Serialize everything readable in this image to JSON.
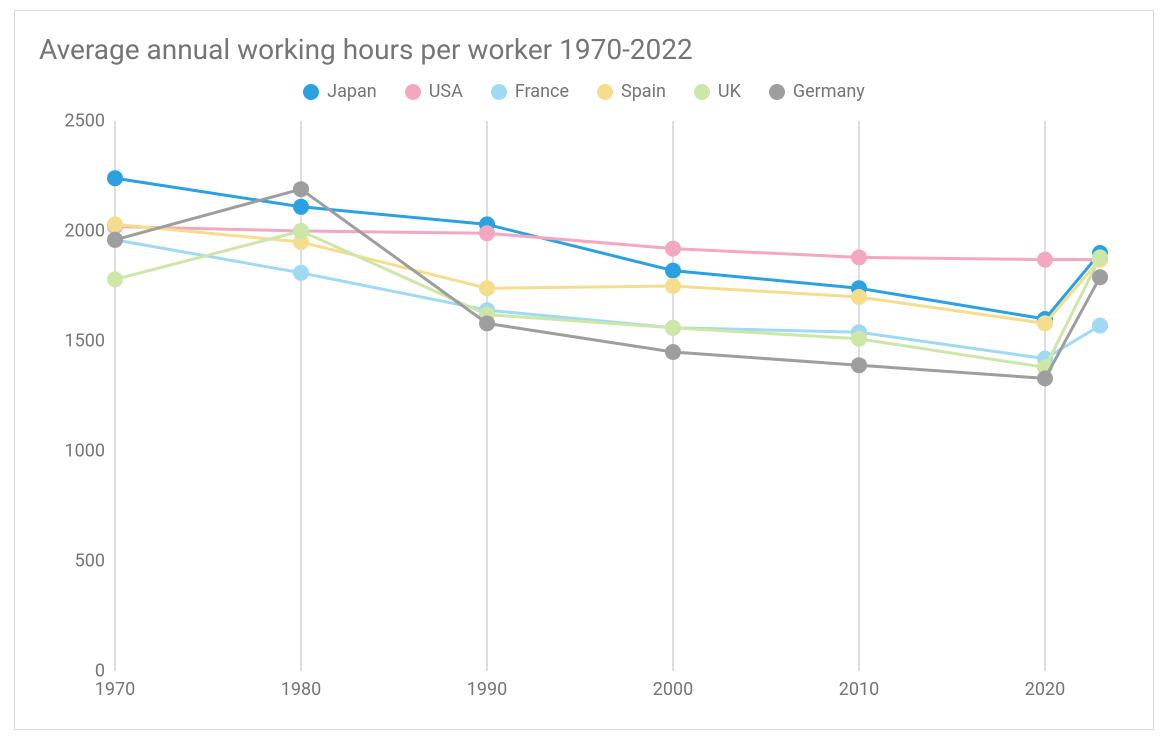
{
  "chart": {
    "type": "line",
    "title": "Average annual working hours per worker 1970-2022",
    "title_color": "#757575",
    "title_fontsize": 28,
    "background_color": "#ffffff",
    "border_color": "#d9d9d9",
    "gridline_color": "#bdbdbd",
    "gridline_width": 1,
    "tick_label_color": "#757575",
    "tick_fontsize": 18,
    "legend_fontsize": 18,
    "line_width": 3,
    "marker_radius": 8,
    "x": {
      "values": [
        1970,
        1980,
        1990,
        2000,
        2010,
        2020,
        2022
      ],
      "ticks": [
        1970,
        1980,
        1990,
        2000,
        2010,
        2020
      ],
      "tick_labels": [
        "1970",
        "1980",
        "1990",
        "2000",
        "2010",
        "2020"
      ],
      "min": 1970,
      "max": 2022
    },
    "y": {
      "ticks": [
        0,
        500,
        1000,
        1500,
        2000,
        2500
      ],
      "tick_labels": [
        "0",
        "500",
        "1000",
        "1500",
        "2000",
        "2500"
      ],
      "min": 0,
      "max": 2500
    },
    "series": [
      {
        "name": "Japan",
        "color": "#2aa2e2",
        "data": [
          2240,
          2110,
          2030,
          1820,
          1740,
          1600,
          1900
        ]
      },
      {
        "name": "USA",
        "color": "#f4a8c0",
        "data": [
          2020,
          2000,
          1990,
          1920,
          1880,
          1870,
          1870
        ]
      },
      {
        "name": "France",
        "color": "#9fd9f2",
        "data": [
          1960,
          1810,
          1640,
          1560,
          1540,
          1420,
          1570
        ]
      },
      {
        "name": "Spain",
        "color": "#f5dd8e",
        "data": [
          2030,
          1950,
          1740,
          1750,
          1700,
          1580,
          1870
        ]
      },
      {
        "name": "UK",
        "color": "#cde7a8",
        "data": [
          1780,
          2000,
          1620,
          1560,
          1510,
          1380,
          1880
        ]
      },
      {
        "name": "Germany",
        "color": "#9e9e9e",
        "data": [
          1960,
          2190,
          1580,
          1450,
          1390,
          1330,
          1790
        ]
      }
    ]
  }
}
